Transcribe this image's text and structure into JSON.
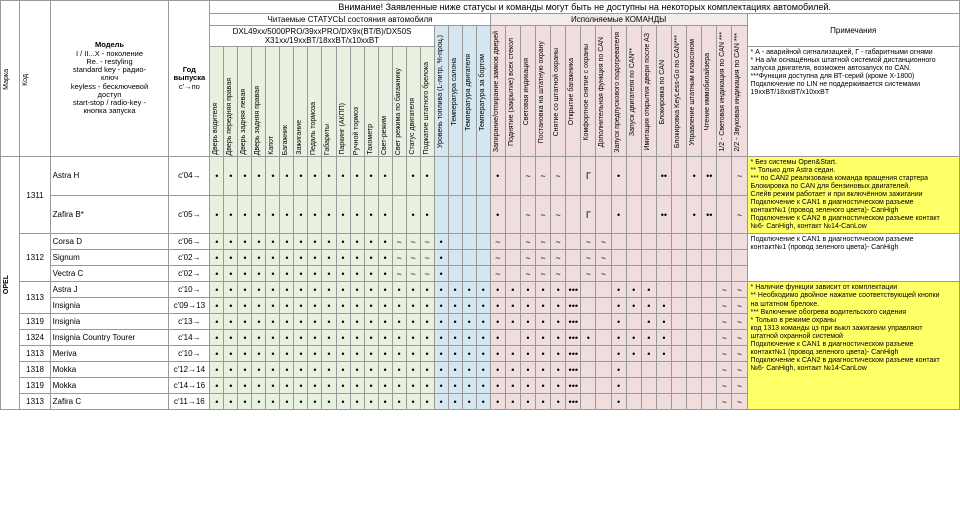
{
  "warning": "Внимание! Заявленные ниже статусы и команды могут быть не доступны на некоторых комплектациях автомобилей.",
  "headers": {
    "marka": "Марка",
    "kod": "Код",
    "model_title": "Модель",
    "model_desc": "I / II...X - поколение\nRe. - restyling\nstandard key - радио-\nключ\nkeyless - бесключевой\nдоступ\nstart-stop / radio-key -\nкнопка запуска",
    "year_title": "Год\nвыпуска",
    "year_desc": "c'→по",
    "status_group": "Читаемые СТАТУСЫ состояния автомобиля",
    "status_sub": "DXL49xx/5000PRO/39xxPRO/DX9x(BT/B)/DX50S\nX31xx/19xxBT/18xxBT/x10xxBT",
    "cmd_group": "Исполняемые КОМАНДЫ",
    "notes_title": "Примечания"
  },
  "status_cols": [
    "Дверь водителя",
    "Дверь передняя правая",
    "Дверь задняя левая",
    "Дверь задняя правая",
    "Капот",
    "Багажник",
    "Зажигание",
    "Педаль тормоза",
    "Габариты",
    "Паркинг (АКПП)",
    "Ручной тормоз",
    "Тахометр",
    "Свет-режим",
    "Свет режима по багажнику",
    "Статус двигателя",
    "Поджатие штатного брелока"
  ],
  "blue_cols": [
    "Уровень топлива (L-литр, %-проц.)",
    "Температура салона",
    "Температура двигателя",
    "Температура за бортом"
  ],
  "cmd_cols": [
    "Запирание/отпирание замков дверей",
    "Поднятие (закрытие) всех стекол",
    "Световая индикация",
    "Постановка на штатную охрану",
    "Снятие со штатной охраны",
    "Открытие багажника",
    "Комфортное снятие с охраны",
    "Дополнительная функция по CAN",
    "Запуск предпускового подогревателя",
    "Запуск двигателя по CAN**",
    "Имитация открытия двери после АЗ",
    "Блокировка по CAN",
    "Блокировка KeyLess-Go по CAN***",
    "Управление штатным клаксоном",
    "Чтение иммобилайзера",
    "1/2 - Световая индикация по CAN ***",
    "2/2 - Звуковая индикация по CAN ***"
  ],
  "rows": [
    {
      "marka": "OPEL",
      "kod": "1311",
      "model": "Astra H",
      "year": "c'04→",
      "s": [
        "•",
        "•",
        "•",
        "•",
        "•",
        "•",
        "•",
        "•",
        "•",
        "•",
        "•",
        "•",
        "•",
        "",
        "•",
        "•"
      ],
      "b": [
        "",
        "",
        "",
        ""
      ],
      "c": [
        "•",
        "",
        "~",
        "~",
        "~",
        "",
        "Г",
        "",
        "•",
        "",
        "",
        "••",
        "",
        "•",
        "••",
        "",
        "~"
      ],
      "note": "* Без системы Open&Start.\n** Только для Astra седан.\n*** по CAN2 реализована команда вращения стартера\nБлокировка по CAN для бензиновых двигателей.\nСлейв режим работает и при включённом зажигании\nПодключение к CAN1 в диагностическом разъеме\nконтакт№1 (провод зеленого цвета)- CanHigh\nПодключение к CAN2 в диагностическом разъеме контакт\n№6- CanHigh, контакт №14-CanLow",
      "note_class": "yellownote",
      "note_rowspan": 2
    },
    {
      "kod": "",
      "model": "Zafira B*",
      "year": "c'05→",
      "s": [
        "•",
        "•",
        "•",
        "•",
        "•",
        "•",
        "•",
        "•",
        "•",
        "•",
        "•",
        "•",
        "•",
        "",
        "•",
        "•"
      ],
      "b": [
        "",
        "",
        "",
        ""
      ],
      "c": [
        "•",
        "",
        "~",
        "~",
        "~",
        "",
        "Г",
        "",
        "•",
        "",
        "",
        "••",
        "",
        "•",
        "••",
        "",
        "~"
      ]
    },
    {
      "kod": "1312",
      "model": "Corsa D",
      "year": "c'06→",
      "s": [
        "•",
        "•",
        "•",
        "•",
        "•",
        "•",
        "•",
        "•",
        "•",
        "•",
        "•",
        "•",
        "•",
        "~",
        "~",
        "~"
      ],
      "b": [
        "•",
        "",
        "",
        ""
      ],
      "c": [
        "~",
        "",
        "~",
        "~",
        "~",
        "",
        "~",
        "~",
        "",
        "",
        "",
        "",
        "",
        "",
        "",
        "",
        ""
      ],
      "note": "Подключение к CAN1 в диагностическом разъеме\nконтакт№1 (провод зеленого цвета)- CanHigh",
      "note_class": "",
      "note_rowspan": 3
    },
    {
      "kod": "",
      "model": "Signum",
      "year": "c'02→",
      "s": [
        "•",
        "•",
        "•",
        "•",
        "•",
        "•",
        "•",
        "•",
        "•",
        "•",
        "•",
        "•",
        "•",
        "~",
        "~",
        "~"
      ],
      "b": [
        "•",
        "",
        "",
        ""
      ],
      "c": [
        "~",
        "",
        "~",
        "~",
        "~",
        "",
        "~",
        "~",
        "",
        "",
        "",
        "",
        "",
        "",
        "",
        "",
        ""
      ]
    },
    {
      "kod": "",
      "model": "Vectra C",
      "year": "c'02→",
      "s": [
        "•",
        "•",
        "•",
        "•",
        "•",
        "•",
        "•",
        "•",
        "•",
        "•",
        "•",
        "•",
        "•",
        "~",
        "~",
        "~"
      ],
      "b": [
        "•",
        "",
        "",
        ""
      ],
      "c": [
        "~",
        "",
        "~",
        "~",
        "~",
        "",
        "~",
        "~",
        "",
        "",
        "",
        "",
        "",
        "",
        "",
        "",
        ""
      ]
    },
    {
      "kod": "1313",
      "model": "Astra J",
      "year": "c'10→",
      "s": [
        "•",
        "•",
        "•",
        "•",
        "•",
        "•",
        "•",
        "•",
        "•",
        "•",
        "•",
        "•",
        "•",
        "•",
        "•",
        "•"
      ],
      "b": [
        "•",
        "•",
        "•",
        "•"
      ],
      "c": [
        "•",
        "•",
        "•",
        "•",
        "•",
        "•••",
        "",
        "",
        "•",
        "•",
        "•",
        "",
        "",
        "",
        "",
        "~",
        "~"
      ],
      "note": "* Наличие функции зависит от комплектации\n** Необходимо двойное нажатие соответствующей кнопки\nна штатном брелоке.\n*** Включение обогрева водительского сидения\n* Только в режиме охраны\nкод 1313 команды цз при выкл зажигании управляют\nштатной охранной системой\nПодключение к CAN1 в диагностическом разъеме\nконтакт№1 (провод зеленого цвета)- CanHigh\nПодключение к CAN2 в диагностическом разъеме контакт\n№6- CanHigh, контакт №14-CanLow",
      "note_class": "yellownote",
      "note_rowspan": 8
    },
    {
      "kod": "",
      "model": "Insignia",
      "year": "c'09→13",
      "s": [
        "•",
        "•",
        "•",
        "•",
        "•",
        "•",
        "•",
        "•",
        "•",
        "•",
        "•",
        "•",
        "•",
        "•",
        "•",
        "•"
      ],
      "b": [
        "•",
        "•",
        "•",
        "•"
      ],
      "c": [
        "•",
        "•",
        "•",
        "•",
        "•",
        "•••",
        "",
        "",
        "•",
        "•",
        "•",
        "•",
        "",
        "",
        "",
        "~",
        "~"
      ]
    },
    {
      "kod": "1319",
      "model": "Insignia",
      "year": "c'13→",
      "s": [
        "•",
        "•",
        "•",
        "•",
        "•",
        "•",
        "•",
        "•",
        "•",
        "•",
        "•",
        "•",
        "•",
        "•",
        "•",
        "•"
      ],
      "b": [
        "•",
        "•",
        "•",
        "•"
      ],
      "c": [
        "•",
        "•",
        "•",
        "•",
        "•",
        "•••",
        "",
        "",
        "•",
        "",
        "•",
        "•",
        "",
        "",
        "",
        "~",
        "~"
      ]
    },
    {
      "kod": "1324",
      "model": "Insignia Country Tourer",
      "year": "c'14→",
      "s": [
        "•",
        "•",
        "•",
        "•",
        "•",
        "•",
        "•",
        "•",
        "•",
        "•",
        "•",
        "•",
        "•",
        "•",
        "•",
        "•"
      ],
      "b": [
        "•",
        "•",
        "•",
        "•"
      ],
      "c": [
        "•",
        "",
        "•",
        "•",
        "•",
        "•••",
        "•",
        "",
        "•",
        "•",
        "•",
        "•",
        "",
        "",
        "",
        "~",
        "~"
      ]
    },
    {
      "kod": "1313",
      "model": "Meriva",
      "year": "c'10→",
      "s": [
        "•",
        "•",
        "•",
        "•",
        "•",
        "•",
        "•",
        "•",
        "•",
        "•",
        "•",
        "•",
        "•",
        "•",
        "•",
        "•"
      ],
      "b": [
        "•",
        "•",
        "•",
        "•"
      ],
      "c": [
        "•",
        "•",
        "•",
        "•",
        "•",
        "•••",
        "",
        "",
        "•",
        "•",
        "•",
        "•",
        "",
        "",
        "",
        "~",
        "~"
      ]
    },
    {
      "kod": "1318",
      "model": "Mokka",
      "year": "c'12→14",
      "s": [
        "•",
        "•",
        "•",
        "•",
        "•",
        "•",
        "•",
        "•",
        "•",
        "•",
        "•",
        "•",
        "•",
        "•",
        "•",
        "•"
      ],
      "b": [
        "•",
        "•",
        "•",
        "•"
      ],
      "c": [
        "•",
        "•",
        "•",
        "•",
        "•",
        "•••",
        "",
        "",
        "•",
        "",
        "",
        "",
        "",
        "",
        "",
        "~",
        "~"
      ]
    },
    {
      "kod": "1319",
      "model": "Mokka",
      "year": "c'14→16",
      "s": [
        "•",
        "•",
        "•",
        "•",
        "•",
        "•",
        "•",
        "•",
        "•",
        "•",
        "•",
        "•",
        "•",
        "•",
        "•",
        "•"
      ],
      "b": [
        "•",
        "•",
        "•",
        "•"
      ],
      "c": [
        "•",
        "•",
        "•",
        "•",
        "•",
        "•••",
        "",
        "",
        "•",
        "",
        "",
        "",
        "",
        "",
        "",
        "~",
        "~"
      ]
    },
    {
      "kod": "1313",
      "model": "Zafira C",
      "year": "c'11→16",
      "s": [
        "•",
        "•",
        "•",
        "•",
        "•",
        "•",
        "•",
        "•",
        "•",
        "•",
        "•",
        "•",
        "•",
        "•",
        "•",
        "•"
      ],
      "b": [
        "•",
        "•",
        "•",
        "•"
      ],
      "c": [
        "•",
        "•",
        "•",
        "•",
        "•",
        "•••",
        "",
        "",
        "•",
        "",
        "",
        "",
        "",
        "",
        "",
        "~",
        "~"
      ]
    }
  ],
  "top_notes": "* А - аварийной сигнализацией, Г - габаритными огнями\n* На а/м оснащённых штатной системой дистанционного\nзапуска двигателя, возможен автозапуск по CAN.\n***Функция доступна для ВТ-серий (кроме X-1800)\nПодключение по LIN не поддерживается системами\n19xxBT/18xxBT/x10xxBT",
  "colors": {
    "green": "#e8f0df",
    "blue": "#d4e6f0",
    "pink": "#f0dede",
    "cmd": "#f4ecec",
    "yellow": "#ffff66"
  }
}
